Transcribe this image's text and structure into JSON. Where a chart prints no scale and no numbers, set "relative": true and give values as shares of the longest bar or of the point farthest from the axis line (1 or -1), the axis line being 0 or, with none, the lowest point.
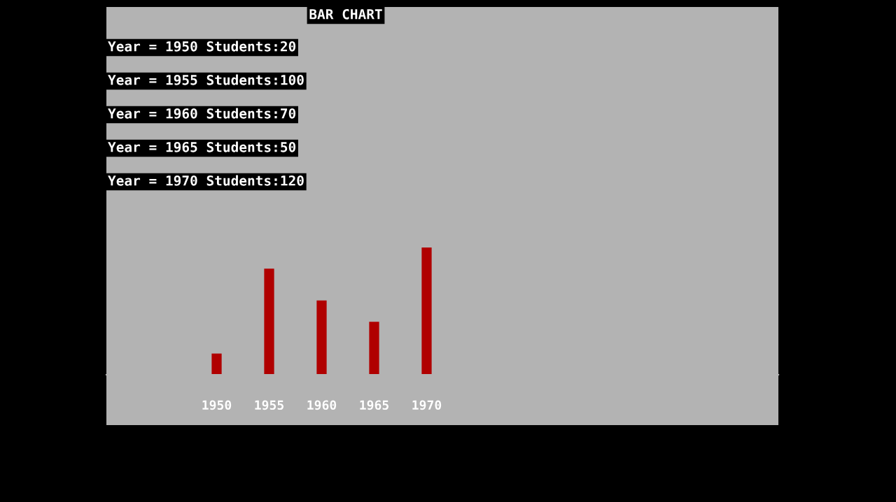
{
  "chart_data": {
    "type": "bar",
    "title": "BAR CHART",
    "relative": true,
    "categories": [
      "1950",
      "1955",
      "1960",
      "1965",
      "1970"
    ],
    "values": [
      0.1667,
      0.8333,
      0.5833,
      0.4167,
      1
    ],
    "color": "#b00000",
    "annotations": [
      "Year = 1950 Students:20",
      "Year = 1955 Students:100",
      "Year = 1960 Students:70",
      "Year = 1965 Students:50",
      "Year = 1970 Students:120"
    ]
  }
}
